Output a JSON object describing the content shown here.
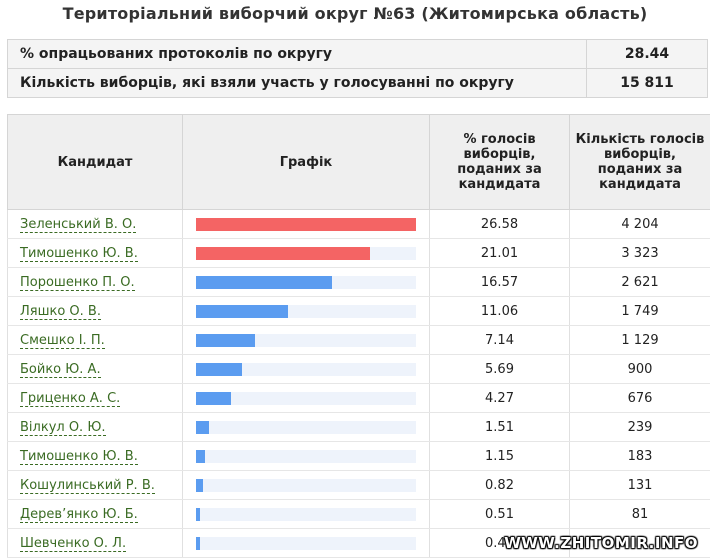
{
  "title": "Територіальний виборчий округ №63 (Житомирська область)",
  "summary": [
    {
      "label": "% опрацьованих протоколів по округу",
      "value": "28.44"
    },
    {
      "label": "Кількість виборців, які взяли участь у голосуванні по округу",
      "value": "15 811"
    }
  ],
  "table": {
    "headers": {
      "candidate": "Кандидат",
      "chart": "Графік",
      "percent": "% голосів виборців, поданих за кандидата",
      "votes": "Кількість голосів виборців, поданих за кандидата"
    },
    "rows": [
      {
        "name": "Зеленський В. О.",
        "percent": "26.58",
        "votes": "4 204",
        "bar": 1.0,
        "color": "#f46464"
      },
      {
        "name": "Тимошенко Ю. В.",
        "percent": "21.01",
        "votes": "3 323",
        "bar": 0.79,
        "color": "#f46464"
      },
      {
        "name": "Порошенко П. О.",
        "percent": "16.57",
        "votes": "2 621",
        "bar": 0.62,
        "color": "#5b9cf0"
      },
      {
        "name": "Ляшко О. В.",
        "percent": "11.06",
        "votes": "1 749",
        "bar": 0.42,
        "color": "#5b9cf0"
      },
      {
        "name": "Смешко І. П.",
        "percent": "7.14",
        "votes": "1 129",
        "bar": 0.27,
        "color": "#5b9cf0"
      },
      {
        "name": "Бойко Ю. А.",
        "percent": "5.69",
        "votes": "900",
        "bar": 0.21,
        "color": "#5b9cf0"
      },
      {
        "name": "Гриценко А. С.",
        "percent": "4.27",
        "votes": "676",
        "bar": 0.16,
        "color": "#5b9cf0"
      },
      {
        "name": "Вілкул О. Ю.",
        "percent": "1.51",
        "votes": "239",
        "bar": 0.057,
        "color": "#5b9cf0"
      },
      {
        "name": "Тимошенко Ю. В.",
        "percent": "1.15",
        "votes": "183",
        "bar": 0.043,
        "color": "#5b9cf0"
      },
      {
        "name": "Кошулинський Р. В.",
        "percent": "0.82",
        "votes": "131",
        "bar": 0.031,
        "color": "#5b9cf0"
      },
      {
        "name": "Дерев’янко Ю. Б.",
        "percent": "0.51",
        "votes": "81",
        "bar": 0.019,
        "color": "#5b9cf0"
      },
      {
        "name": "Шевченко О. Л.",
        "percent": "0.49",
        "votes": "",
        "bar": 0.018,
        "color": "#5b9cf0"
      }
    ]
  },
  "watermark": "WWW.ZHITOMIR.INFO"
}
